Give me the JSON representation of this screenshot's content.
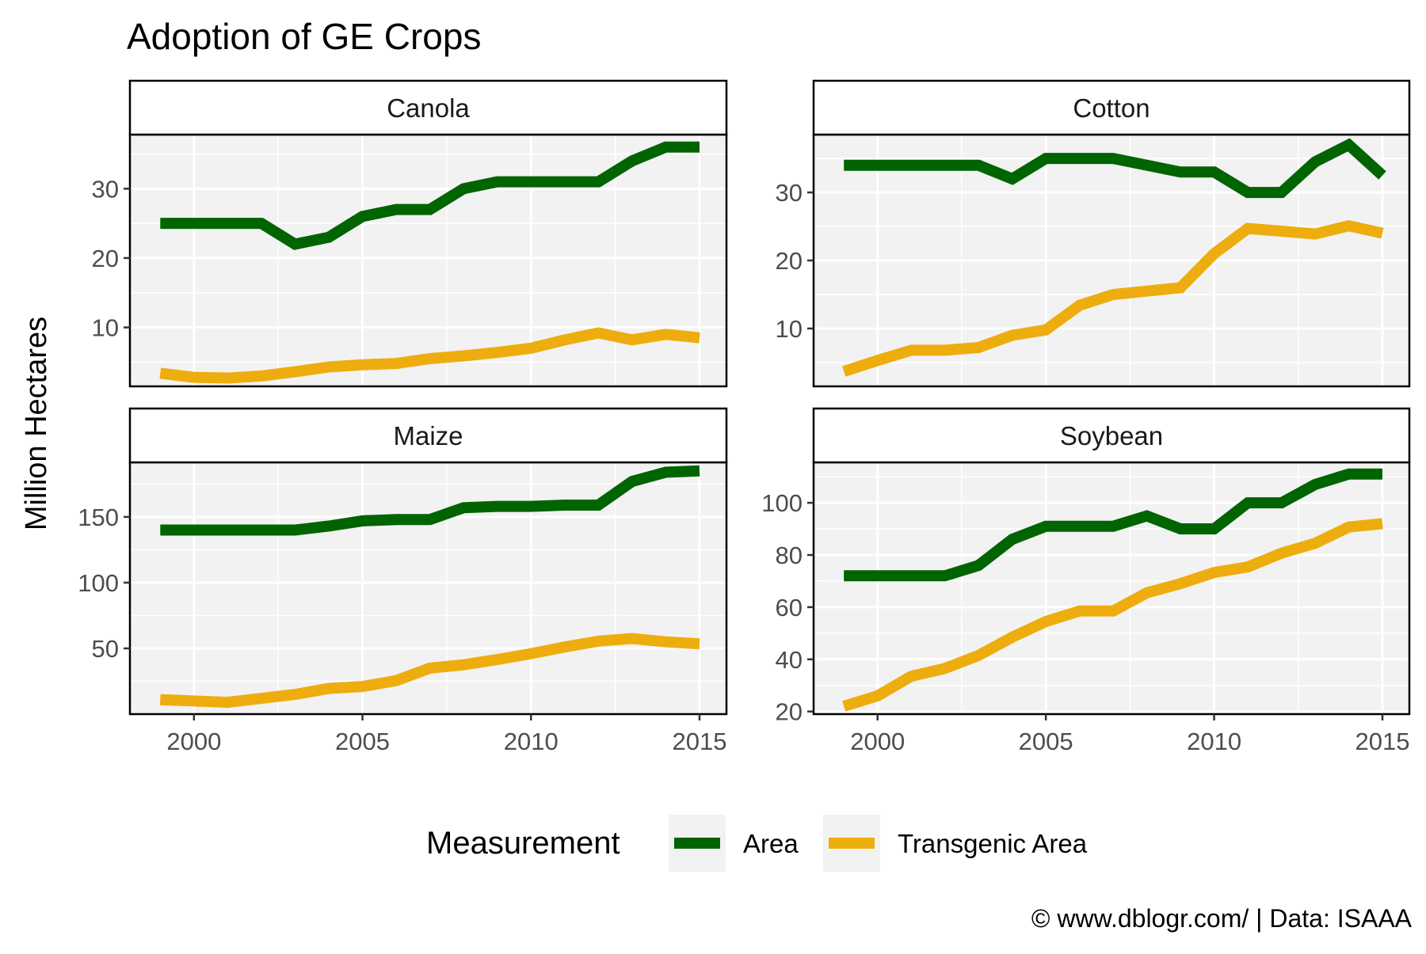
{
  "chart_data": {
    "type": "line",
    "title": "Adoption of GE Crops",
    "ylabel": "Million Hectares",
    "xlabel": "",
    "caption": "© www.dblogr.com/  |  Data: ISAAA",
    "legend": {
      "title": "Measurement",
      "placement": "bottom",
      "entries": [
        {
          "name": "Area",
          "color": "#006400"
        },
        {
          "name": "Transgenic Area",
          "color": "#EEAD0E"
        }
      ]
    },
    "x": [
      1999,
      2000,
      2001,
      2002,
      2003,
      2004,
      2005,
      2006,
      2007,
      2008,
      2009,
      2010,
      2011,
      2012,
      2013,
      2014,
      2015
    ],
    "xticks": [
      2000,
      2005,
      2010,
      2015
    ],
    "xlim": [
      1998.1,
      2015.8
    ],
    "grid": true,
    "panels": [
      {
        "strip": "Canola",
        "ylim": [
          1.5,
          37.8
        ],
        "yticks": [
          10,
          20,
          30
        ],
        "series": [
          {
            "name": "Area",
            "values": [
              25,
              25,
              25,
              25,
              22,
              23,
              26,
              27,
              27,
              30,
              31,
              31,
              31,
              31,
              34,
              36,
              36
            ]
          },
          {
            "name": "Transgenic Area",
            "values": [
              3.4,
              2.8,
              2.7,
              3.0,
              3.6,
              4.3,
              4.6,
              4.8,
              5.5,
              5.9,
              6.4,
              7.0,
              8.2,
              9.2,
              8.2,
              9.0,
              8.5
            ]
          }
        ]
      },
      {
        "strip": "Cotton",
        "ylim": [
          1.5,
          38.5
        ],
        "yticks": [
          10,
          20,
          30
        ],
        "series": [
          {
            "name": "Area",
            "values": [
              34,
              34,
              34,
              34,
              34,
              32,
              35,
              35,
              35,
              34,
              33,
              33,
              30,
              30,
              34.5,
              37,
              32.5
            ]
          },
          {
            "name": "Transgenic Area",
            "values": [
              3.7,
              5.3,
              6.8,
              6.8,
              7.2,
              9.0,
              9.8,
              13.4,
              15.0,
              15.5,
              16.0,
              21.0,
              24.7,
              24.3,
              23.9,
              25.1,
              24.0
            ]
          }
        ]
      },
      {
        "strip": "Maize",
        "ylim": [
          0,
          191.5
        ],
        "yticks": [
          50,
          100,
          150
        ],
        "series": [
          {
            "name": "Area",
            "values": [
              140,
              140,
              140,
              140,
              140,
              143,
              147,
              148,
              148,
              157,
              158,
              158,
              159,
              159,
              177,
              184,
              185
            ]
          },
          {
            "name": "Transgenic Area",
            "values": [
              11,
              10,
              9,
              12,
              15,
              19.5,
              21,
              25.5,
              35,
              37.5,
              41.5,
              46,
              51,
              55.5,
              57.5,
              55,
              53.5
            ]
          }
        ]
      },
      {
        "strip": "Soybean",
        "ylim": [
          19,
          115.5
        ],
        "yticks": [
          20,
          40,
          60,
          80,
          100
        ],
        "series": [
          {
            "name": "Area",
            "values": [
              72,
              72,
              72,
              72,
              76,
              86,
              91,
              91,
              91,
              95,
              90,
              90,
              100,
              100,
              107,
              111,
              111
            ]
          },
          {
            "name": "Transgenic Area",
            "values": [
              22,
              26,
              33.5,
              36.5,
              41.5,
              48.5,
              54.5,
              58.5,
              58.5,
              65.5,
              69,
              73.3,
              75.4,
              80.7,
              84.5,
              90.7,
              92
            ]
          }
        ]
      }
    ]
  }
}
